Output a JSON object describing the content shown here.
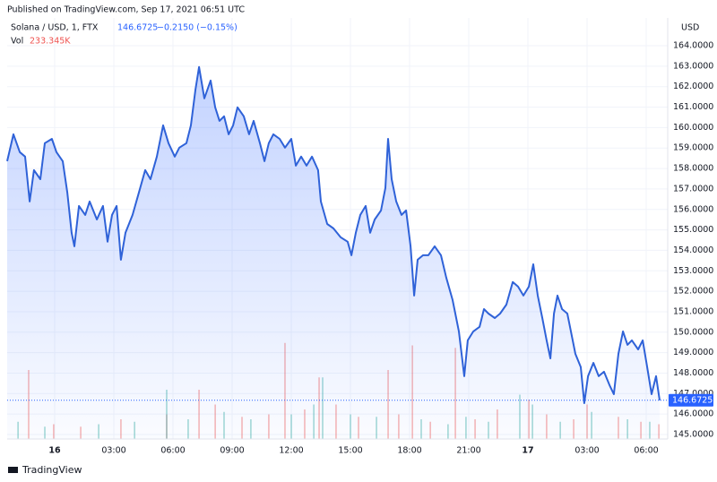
{
  "chart_data": {
    "type": "area",
    "title": "Published on TradingView.com, Sep 17, 2021 06:51 UTC",
    "symbol": "Solana / USD, 1, FTX",
    "last_price": 146.6725,
    "change": "−0.2150 (−0.15%)",
    "volume_label": "Vol",
    "volume_value": "233.345K",
    "currency": "USD",
    "brand": "TradingView",
    "grid": true,
    "xlim": [
      -2.41,
      31.09
    ],
    "ylim": [
      144.78,
      165.36
    ],
    "xticks": [
      {
        "value": 0,
        "label": "16"
      },
      {
        "value": 3,
        "label": "03:00"
      },
      {
        "value": 6,
        "label": "06:00"
      },
      {
        "value": 9,
        "label": "09:00"
      },
      {
        "value": 12,
        "label": "12:00"
      },
      {
        "value": 15,
        "label": "15:00"
      },
      {
        "value": 18,
        "label": "18:00"
      },
      {
        "value": 21,
        "label": "21:00"
      },
      {
        "value": 24,
        "label": "17"
      },
      {
        "value": 27,
        "label": "03:00"
      },
      {
        "value": 30,
        "label": "06:00"
      }
    ],
    "yticks": [
      {
        "value": 145,
        "label": "145.0000"
      },
      {
        "value": 146,
        "label": "146.0000"
      },
      {
        "value": 147,
        "label": "147.0000"
      },
      {
        "value": 148,
        "label": "148.0000"
      },
      {
        "value": 149,
        "label": "149.0000"
      },
      {
        "value": 150,
        "label": "150.0000"
      },
      {
        "value": 151,
        "label": "151.0000"
      },
      {
        "value": 152,
        "label": "152.0000"
      },
      {
        "value": 153,
        "label": "153.0000"
      },
      {
        "value": 154,
        "label": "154.0000"
      },
      {
        "value": 155,
        "label": "155.0000"
      },
      {
        "value": 156,
        "label": "156.0000"
      },
      {
        "value": 157,
        "label": "157.0000"
      },
      {
        "value": 158,
        "label": "158.0000"
      },
      {
        "value": 159,
        "label": "159.0000"
      },
      {
        "value": 160,
        "label": "160.0000"
      },
      {
        "value": 161,
        "label": "161.0000"
      },
      {
        "value": 162,
        "label": "162.0000"
      },
      {
        "value": 163,
        "label": "163.0000"
      },
      {
        "value": 164,
        "label": "164.0000"
      }
    ],
    "series": [
      {
        "color": "#2f62d8",
        "x": [
          -2.41,
          -2.09,
          -1.77,
          -1.5,
          -1.27,
          -1.05,
          -0.73,
          -0.5,
          -0.14,
          0.09,
          0.41,
          0.64,
          0.86,
          1,
          1.23,
          1.55,
          1.77,
          2.14,
          2.45,
          2.68,
          2.91,
          3.14,
          3.36,
          3.59,
          3.95,
          4.27,
          4.59,
          4.86,
          5.18,
          5.5,
          5.77,
          6.09,
          6.32,
          6.68,
          6.91,
          7.14,
          7.32,
          7.59,
          7.91,
          8.14,
          8.36,
          8.59,
          8.82,
          9.05,
          9.27,
          9.59,
          9.86,
          10.09,
          10.41,
          10.64,
          10.86,
          11.09,
          11.41,
          11.68,
          12,
          12.23,
          12.5,
          12.77,
          13.05,
          13.36,
          13.5,
          13.82,
          14.14,
          14.5,
          14.86,
          15.05,
          15.27,
          15.5,
          15.77,
          16,
          16.23,
          16.55,
          16.77,
          16.91,
          17.09,
          17.32,
          17.59,
          17.82,
          18.05,
          18.23,
          18.41,
          18.68,
          18.95,
          19.27,
          19.59,
          19.86,
          20.18,
          20.5,
          20.77,
          20.95,
          21.23,
          21.55,
          21.77,
          22,
          22.32,
          22.59,
          22.91,
          23.23,
          23.5,
          23.77,
          24.05,
          24.27,
          24.5,
          24.73,
          24.95,
          25.14,
          25.32,
          25.5,
          25.73,
          26,
          26.18,
          26.41,
          26.68,
          26.86,
          27.05,
          27.32,
          27.59,
          27.86,
          28.14,
          28.36,
          28.59,
          28.82,
          29.05,
          29.27,
          29.59,
          29.82,
          30.05,
          30.27,
          30.5,
          30.68
        ],
        "values": [
          158.36,
          159.67,
          158.8,
          158.58,
          156.39,
          157.92,
          157.48,
          159.24,
          159.45,
          158.8,
          158.36,
          156.83,
          154.86,
          154.2,
          156.17,
          155.73,
          156.39,
          155.51,
          156.17,
          154.42,
          155.73,
          156.17,
          153.54,
          154.86,
          155.73,
          156.83,
          157.92,
          157.48,
          158.58,
          160.11,
          159.24,
          158.58,
          159.02,
          159.24,
          160.11,
          161.86,
          162.96,
          161.43,
          162.3,
          160.99,
          160.33,
          160.55,
          159.67,
          160.11,
          160.99,
          160.55,
          159.67,
          160.33,
          159.24,
          158.36,
          159.24,
          159.67,
          159.45,
          159.02,
          159.45,
          158.14,
          158.58,
          158.14,
          158.58,
          157.92,
          156.39,
          155.29,
          155.07,
          154.64,
          154.42,
          153.76,
          154.86,
          155.73,
          156.17,
          154.86,
          155.51,
          155.95,
          157.05,
          159.45,
          157.48,
          156.39,
          155.73,
          155.95,
          154.2,
          151.79,
          153.54,
          153.76,
          153.76,
          154.2,
          153.76,
          152.67,
          151.57,
          150.04,
          147.85,
          149.6,
          150.04,
          150.26,
          151.13,
          150.91,
          150.69,
          150.91,
          151.35,
          152.45,
          152.23,
          151.79,
          152.23,
          153.32,
          151.79,
          150.69,
          149.6,
          148.72,
          150.91,
          151.79,
          151.13,
          150.91,
          150.04,
          148.94,
          148.29,
          146.53,
          147.85,
          148.5,
          147.85,
          148.07,
          147.41,
          146.97,
          148.94,
          150.04,
          149.38,
          149.6,
          149.16,
          149.6,
          148.29,
          146.97,
          147.85,
          146.67
        ]
      }
    ],
    "volume": {
      "ylim": [
        0,
        2000
      ],
      "series": [
        {
          "color": "#ef5350",
          "x": [
            -1.32,
            -0.05,
            1.32,
            3.36,
            5.68,
            7.32,
            8.14,
            9.5,
            10.86,
            11.68,
            12.68,
            13.41,
            14.27,
            15.41,
            16.91,
            17.45,
            18.14,
            19.05,
            20.32,
            21.32,
            22.45,
            24.05,
            24.95,
            26.32,
            27,
            28.59,
            29.73,
            30.64
          ],
          "values": [
            1400,
            300,
            250,
            400,
            500,
            1000,
            700,
            450,
            500,
            1950,
            600,
            1250,
            700,
            450,
            1400,
            500,
            1900,
            350,
            1850,
            400,
            600,
            800,
            500,
            400,
            700,
            450,
            350,
            300
          ]
        },
        {
          "color": "#26a69a",
          "x": [
            -1.86,
            -0.5,
            2.23,
            4.05,
            5.68,
            6.77,
            8.59,
            9.95,
            12,
            13.14,
            13.59,
            15,
            16.32,
            18.59,
            19.95,
            20.86,
            22,
            23.59,
            24.23,
            25.64,
            27.23,
            29.05,
            30.18
          ],
          "values": [
            350,
            250,
            300,
            350,
            1000,
            400,
            550,
            400,
            500,
            700,
            1250,
            500,
            450,
            400,
            300,
            450,
            350,
            900,
            700,
            350,
            550,
            400,
            350
          ]
        }
      ]
    }
  }
}
